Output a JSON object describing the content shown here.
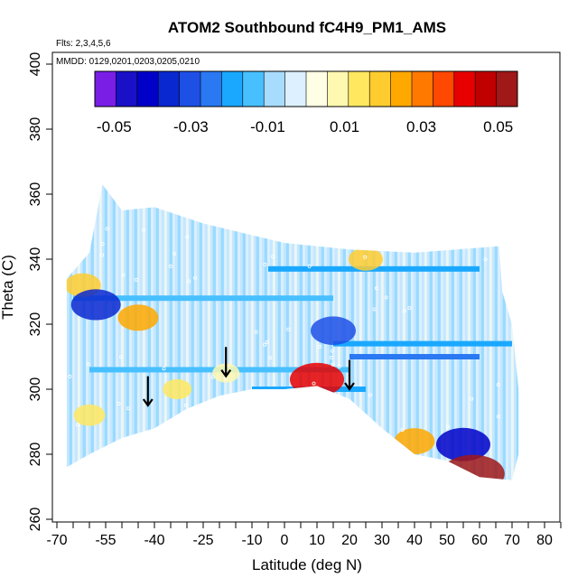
{
  "chart_data": {
    "type": "heatmap",
    "title": "ATOM2 Southbound fC4H9_PM1_AMS",
    "flights_note": "Flts: 2,3,4,5,6",
    "dates_note": "MMDD: 0129,0201,0203,0205,0210",
    "xlabel": "Latitude (deg N)",
    "ylabel": "Theta (C)",
    "xlim": [
      -70,
      85
    ],
    "ylim": [
      260,
      405
    ],
    "x_ticks_labeled": [
      -70,
      -55,
      -40,
      -25,
      -10,
      0,
      10,
      20,
      30,
      40,
      50,
      60,
      70,
      80
    ],
    "x_ticks_minor": [
      -65,
      -60,
      -50,
      -45,
      -35,
      -30,
      -20,
      -15,
      -5,
      5,
      15,
      25,
      35,
      45,
      55,
      65,
      75,
      85
    ],
    "y_ticks": [
      260,
      280,
      300,
      320,
      340,
      360,
      380,
      400
    ],
    "colorbar": {
      "range": [
        -0.055,
        0.055
      ],
      "tick_labels": [
        "-0.05",
        "-0.03",
        "-0.01",
        "0.01",
        "0.03",
        "0.05"
      ],
      "tick_values": [
        -0.05,
        -0.03,
        -0.01,
        0.01,
        0.03,
        0.05
      ],
      "colors": [
        "#7a1ee6",
        "#1a10c8",
        "#0000c8",
        "#0a28d0",
        "#1e50e6",
        "#2a78f2",
        "#1aa8ff",
        "#48c0ff",
        "#a8dcff",
        "#dcf0ff",
        "#ffffe6",
        "#fff8b0",
        "#ffe860",
        "#ffcc30",
        "#ffa800",
        "#ff7800",
        "#ff4800",
        "#e80000",
        "#c00000",
        "#a01818"
      ]
    },
    "coverage_outline": [
      [
        -67,
        276
      ],
      [
        -67,
        334
      ],
      [
        -60,
        342
      ],
      [
        -56,
        363
      ],
      [
        -50,
        355
      ],
      [
        -40,
        356
      ],
      [
        -25,
        351
      ],
      [
        0,
        345
      ],
      [
        20,
        343
      ],
      [
        40,
        342
      ],
      [
        66,
        344
      ],
      [
        67,
        330
      ],
      [
        70,
        320
      ],
      [
        72,
        300
      ],
      [
        72,
        280
      ],
      [
        70,
        272
      ],
      [
        60,
        273
      ],
      [
        50,
        278
      ],
      [
        40,
        280
      ],
      [
        30,
        288
      ],
      [
        20,
        297
      ],
      [
        10,
        301
      ],
      [
        0,
        300
      ],
      [
        -10,
        300
      ],
      [
        -20,
        298
      ],
      [
        -30,
        294
      ],
      [
        -40,
        288
      ],
      [
        -50,
        285
      ],
      [
        -60,
        280
      ]
    ],
    "anomalies": [
      {
        "lat": -62,
        "theta": 332,
        "value": 0.02
      },
      {
        "lat": -58,
        "theta": 326,
        "value": -0.035
      },
      {
        "lat": -45,
        "theta": 322,
        "value": 0.025
      },
      {
        "lat": -33,
        "theta": 300,
        "value": 0.012
      },
      {
        "lat": -18,
        "theta": 305,
        "value": 0.01
      },
      {
        "lat": 25,
        "theta": 340,
        "value": 0.018
      },
      {
        "lat": 15,
        "theta": 318,
        "value": -0.03
      },
      {
        "lat": 10,
        "theta": 303,
        "value": 0.04
      },
      {
        "lat": 40,
        "theta": 284,
        "value": 0.025
      },
      {
        "lat": 55,
        "theta": 283,
        "value": -0.04
      },
      {
        "lat": 58,
        "theta": 274,
        "value": 0.05
      },
      {
        "lat": -60,
        "theta": 292,
        "value": 0.015
      }
    ],
    "bands": [
      {
        "theta": 337,
        "lat0": -5,
        "lat1": 60,
        "value": -0.022
      },
      {
        "theta": 328,
        "lat0": -65,
        "lat1": 15,
        "value": -0.015
      },
      {
        "theta": 314,
        "lat0": 15,
        "lat1": 70,
        "value": -0.02
      },
      {
        "theta": 306,
        "lat0": -60,
        "lat1": 20,
        "value": -0.012
      },
      {
        "theta": 300,
        "lat0": -10,
        "lat1": 25,
        "value": -0.02
      },
      {
        "theta": 310,
        "lat0": 20,
        "lat1": 60,
        "value": -0.025
      }
    ],
    "arrows": [
      {
        "lat": -42,
        "theta": 295
      },
      {
        "lat": -18,
        "theta": 304
      },
      {
        "lat": 20,
        "theta": 300
      }
    ],
    "grid": false
  }
}
